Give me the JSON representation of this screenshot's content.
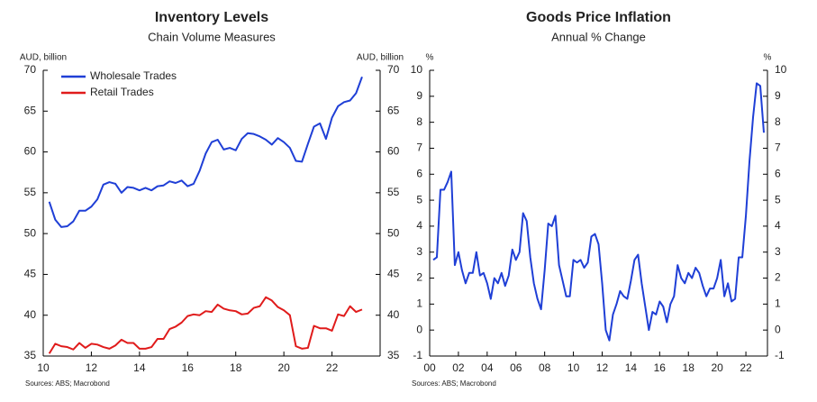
{
  "chart_data": [
    {
      "type": "line",
      "title": "Inventory Levels",
      "subtitle": "Chain Volume Measures",
      "y_label": "AUD, billion",
      "source": "Sources: ABS; Macrobond",
      "x": [
        2010.25,
        2010.5,
        2010.75,
        2011,
        2011.25,
        2011.5,
        2011.75,
        2012,
        2012.25,
        2012.5,
        2012.75,
        2013,
        2013.25,
        2013.5,
        2013.75,
        2014,
        2014.25,
        2014.5,
        2014.75,
        2015,
        2015.25,
        2015.5,
        2015.75,
        2016,
        2016.25,
        2016.5,
        2016.75,
        2017,
        2017.25,
        2017.5,
        2017.75,
        2018,
        2018.25,
        2018.5,
        2018.75,
        2019,
        2019.25,
        2019.5,
        2019.75,
        2020,
        2020.25,
        2020.5,
        2020.75,
        2021,
        2021.25,
        2021.5,
        2021.75,
        2022,
        2022.25,
        2022.5,
        2022.75,
        2023,
        2023.25
      ],
      "series": [
        {
          "name": "Wholesale Trades",
          "color": "#1f3fd6",
          "values": [
            53.9,
            51.7,
            50.8,
            50.9,
            51.5,
            52.8,
            52.8,
            53.3,
            54.2,
            56.0,
            56.3,
            56.1,
            55.0,
            55.7,
            55.6,
            55.3,
            55.6,
            55.3,
            55.8,
            55.9,
            56.4,
            56.2,
            56.5,
            55.8,
            56.1,
            57.7,
            59.8,
            61.2,
            61.5,
            60.3,
            60.5,
            60.2,
            61.6,
            62.3,
            62.2,
            61.9,
            61.5,
            60.9,
            61.7,
            61.2,
            60.5,
            58.9,
            58.8,
            61.0,
            63.1,
            63.5,
            61.6,
            64.2,
            65.6,
            66.1,
            66.3,
            67.2,
            69.2
          ]
        },
        {
          "name": "Retail Trades",
          "color": "#e01b1b",
          "values": [
            35.3,
            36.5,
            36.2,
            36.1,
            35.8,
            36.6,
            36.0,
            36.5,
            36.4,
            36.1,
            35.9,
            36.3,
            37.0,
            36.6,
            36.6,
            35.9,
            35.9,
            36.1,
            37.1,
            37.1,
            38.3,
            38.6,
            39.1,
            39.9,
            40.1,
            40.0,
            40.5,
            40.4,
            41.3,
            40.8,
            40.6,
            40.5,
            40.1,
            40.2,
            40.9,
            41.1,
            42.2,
            41.8,
            41.0,
            40.6,
            40.0,
            36.2,
            35.9,
            36.0,
            38.7,
            38.4,
            38.4,
            38.1,
            40.1,
            39.9,
            41.1,
            40.4,
            40.7
          ]
        }
      ],
      "xlim": [
        2010,
        2024
      ],
      "xticks": [
        {
          "value": 2010,
          "label": "10"
        },
        {
          "value": 2012,
          "label": "12"
        },
        {
          "value": 2014,
          "label": "14"
        },
        {
          "value": 2016,
          "label": "16"
        },
        {
          "value": 2018,
          "label": "18"
        },
        {
          "value": 2020,
          "label": "20"
        },
        {
          "value": 2022,
          "label": "22"
        }
      ],
      "ylim": [
        35,
        70
      ],
      "yticks": [
        35,
        40,
        45,
        50,
        55,
        60,
        65,
        70
      ],
      "mirror_y": true,
      "legend": "upper-left",
      "grid": false
    },
    {
      "type": "line",
      "title": "Goods Price Inflation",
      "subtitle": "Annual % Change",
      "y_label": "%",
      "source": "Sources: ABS; Macrobond",
      "x": [
        2000.25,
        2000.5,
        2000.75,
        2001,
        2001.25,
        2001.5,
        2001.75,
        2002,
        2002.25,
        2002.5,
        2002.75,
        2003,
        2003.25,
        2003.5,
        2003.75,
        2004,
        2004.25,
        2004.5,
        2004.75,
        2005,
        2005.25,
        2005.5,
        2005.75,
        2006,
        2006.25,
        2006.5,
        2006.75,
        2007,
        2007.25,
        2007.5,
        2007.75,
        2008,
        2008.25,
        2008.5,
        2008.75,
        2009,
        2009.25,
        2009.5,
        2009.75,
        2010,
        2010.25,
        2010.5,
        2010.75,
        2011,
        2011.25,
        2011.5,
        2011.75,
        2012,
        2012.25,
        2012.5,
        2012.75,
        2013,
        2013.25,
        2013.5,
        2013.75,
        2014,
        2014.25,
        2014.5,
        2014.75,
        2015,
        2015.25,
        2015.5,
        2015.75,
        2016,
        2016.25,
        2016.5,
        2016.75,
        2017,
        2017.25,
        2017.5,
        2017.75,
        2018,
        2018.25,
        2018.5,
        2018.75,
        2019,
        2019.25,
        2019.5,
        2019.75,
        2020,
        2020.25,
        2020.5,
        2020.75,
        2021,
        2021.25,
        2021.5,
        2021.75,
        2022,
        2022.25,
        2022.5,
        2022.75,
        2023,
        2023.25
      ],
      "series": [
        {
          "color": "#1f3fd6",
          "values": [
            2.7,
            2.8,
            5.4,
            5.4,
            5.7,
            6.1,
            2.5,
            3.0,
            2.3,
            1.8,
            2.2,
            2.2,
            3.0,
            2.1,
            2.2,
            1.8,
            1.2,
            2.0,
            1.8,
            2.2,
            1.7,
            2.1,
            3.1,
            2.7,
            3.0,
            4.5,
            4.2,
            2.8,
            1.8,
            1.2,
            0.8,
            2.3,
            4.1,
            4.0,
            4.4,
            2.5,
            1.9,
            1.3,
            1.3,
            2.7,
            2.6,
            2.7,
            2.4,
            2.6,
            3.6,
            3.7,
            3.3,
            1.8,
            0.0,
            -0.4,
            0.6,
            1.0,
            1.5,
            1.3,
            1.2,
            1.9,
            2.7,
            2.9,
            1.8,
            0.9,
            0.0,
            0.7,
            0.6,
            1.1,
            0.9,
            0.3,
            1.0,
            1.3,
            2.5,
            2.0,
            1.8,
            2.2,
            2.0,
            2.4,
            2.2,
            1.7,
            1.3,
            1.6,
            1.6,
            2.0,
            2.7,
            1.3,
            1.8,
            1.1,
            1.2,
            2.8,
            2.8,
            4.4,
            6.5,
            8.2,
            9.5,
            9.4,
            7.6
          ]
        }
      ],
      "xlim": [
        2000,
        2023.5
      ],
      "xticks": [
        {
          "value": 2000,
          "label": "00"
        },
        {
          "value": 2002,
          "label": "02"
        },
        {
          "value": 2004,
          "label": "04"
        },
        {
          "value": 2006,
          "label": "06"
        },
        {
          "value": 2008,
          "label": "08"
        },
        {
          "value": 2010,
          "label": "10"
        },
        {
          "value": 2012,
          "label": "12"
        },
        {
          "value": 2014,
          "label": "14"
        },
        {
          "value": 2016,
          "label": "16"
        },
        {
          "value": 2018,
          "label": "18"
        },
        {
          "value": 2020,
          "label": "20"
        },
        {
          "value": 2022,
          "label": "22"
        }
      ],
      "ylim": [
        -1,
        10
      ],
      "yticks": [
        -1,
        0,
        1,
        2,
        3,
        4,
        5,
        6,
        7,
        8,
        9,
        10
      ],
      "mirror_y": true,
      "grid": false
    }
  ]
}
